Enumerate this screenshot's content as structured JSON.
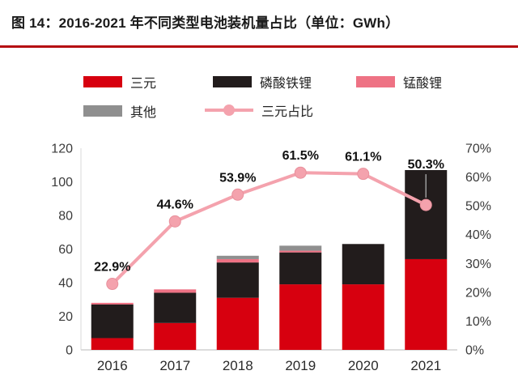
{
  "title": "图 14：2016-2021 年不同类型电池装机量占比（单位：GWh）",
  "divider_color": "#b50b12",
  "legend": [
    {
      "label": "三元",
      "color": "#d7000f",
      "type": "rect"
    },
    {
      "label": "磷酸铁锂",
      "color": "#221c1c",
      "type": "rect"
    },
    {
      "label": "锰酸锂",
      "color": "#ee7284",
      "type": "rect"
    },
    {
      "label": "其他",
      "color": "#8f8f8f",
      "type": "rect"
    },
    {
      "label": "三元占比",
      "color": "#f4a2ad",
      "type": "line"
    }
  ],
  "chart_data": {
    "type": "bar",
    "subtype": "stacked-bar-with-line",
    "title": "2016-2021 年不同类型电池装机量占比（单位：GWh）",
    "categories": [
      "2016",
      "2017",
      "2018",
      "2019",
      "2020",
      "2021"
    ],
    "series": [
      {
        "name": "三元",
        "type": "bar",
        "color": "#d7000f",
        "values": [
          7,
          16,
          31,
          39,
          39,
          54
        ]
      },
      {
        "name": "磷酸铁锂",
        "type": "bar",
        "color": "#221c1c",
        "values": [
          20,
          18,
          21,
          19,
          24,
          53
        ]
      },
      {
        "name": "锰酸锂",
        "type": "bar",
        "color": "#ee7284",
        "values": [
          1,
          2,
          2,
          1,
          0,
          0
        ]
      },
      {
        "name": "其他",
        "type": "bar",
        "color": "#8f8f8f",
        "values": [
          0,
          0,
          2,
          3,
          0,
          0
        ]
      },
      {
        "name": "三元占比",
        "type": "line",
        "axis": "right",
        "color": "#f4a2ad",
        "values": [
          22.9,
          44.6,
          53.9,
          61.5,
          61.1,
          50.3
        ],
        "labels": [
          "22.9%",
          "44.6%",
          "53.9%",
          "61.5%",
          "61.1%",
          "50.3%"
        ]
      }
    ],
    "left_axis": {
      "min": 0,
      "max": 120,
      "ticks": [
        0,
        20,
        40,
        60,
        80,
        100,
        120
      ]
    },
    "right_axis": {
      "min": 0,
      "max": 70,
      "ticks": [
        0,
        10,
        20,
        30,
        40,
        50,
        60,
        70
      ],
      "labels": [
        "0%",
        "10%",
        "20%",
        "30%",
        "40%",
        "50%",
        "60%",
        "70%"
      ]
    },
    "grid": false,
    "legend_position": "top"
  }
}
